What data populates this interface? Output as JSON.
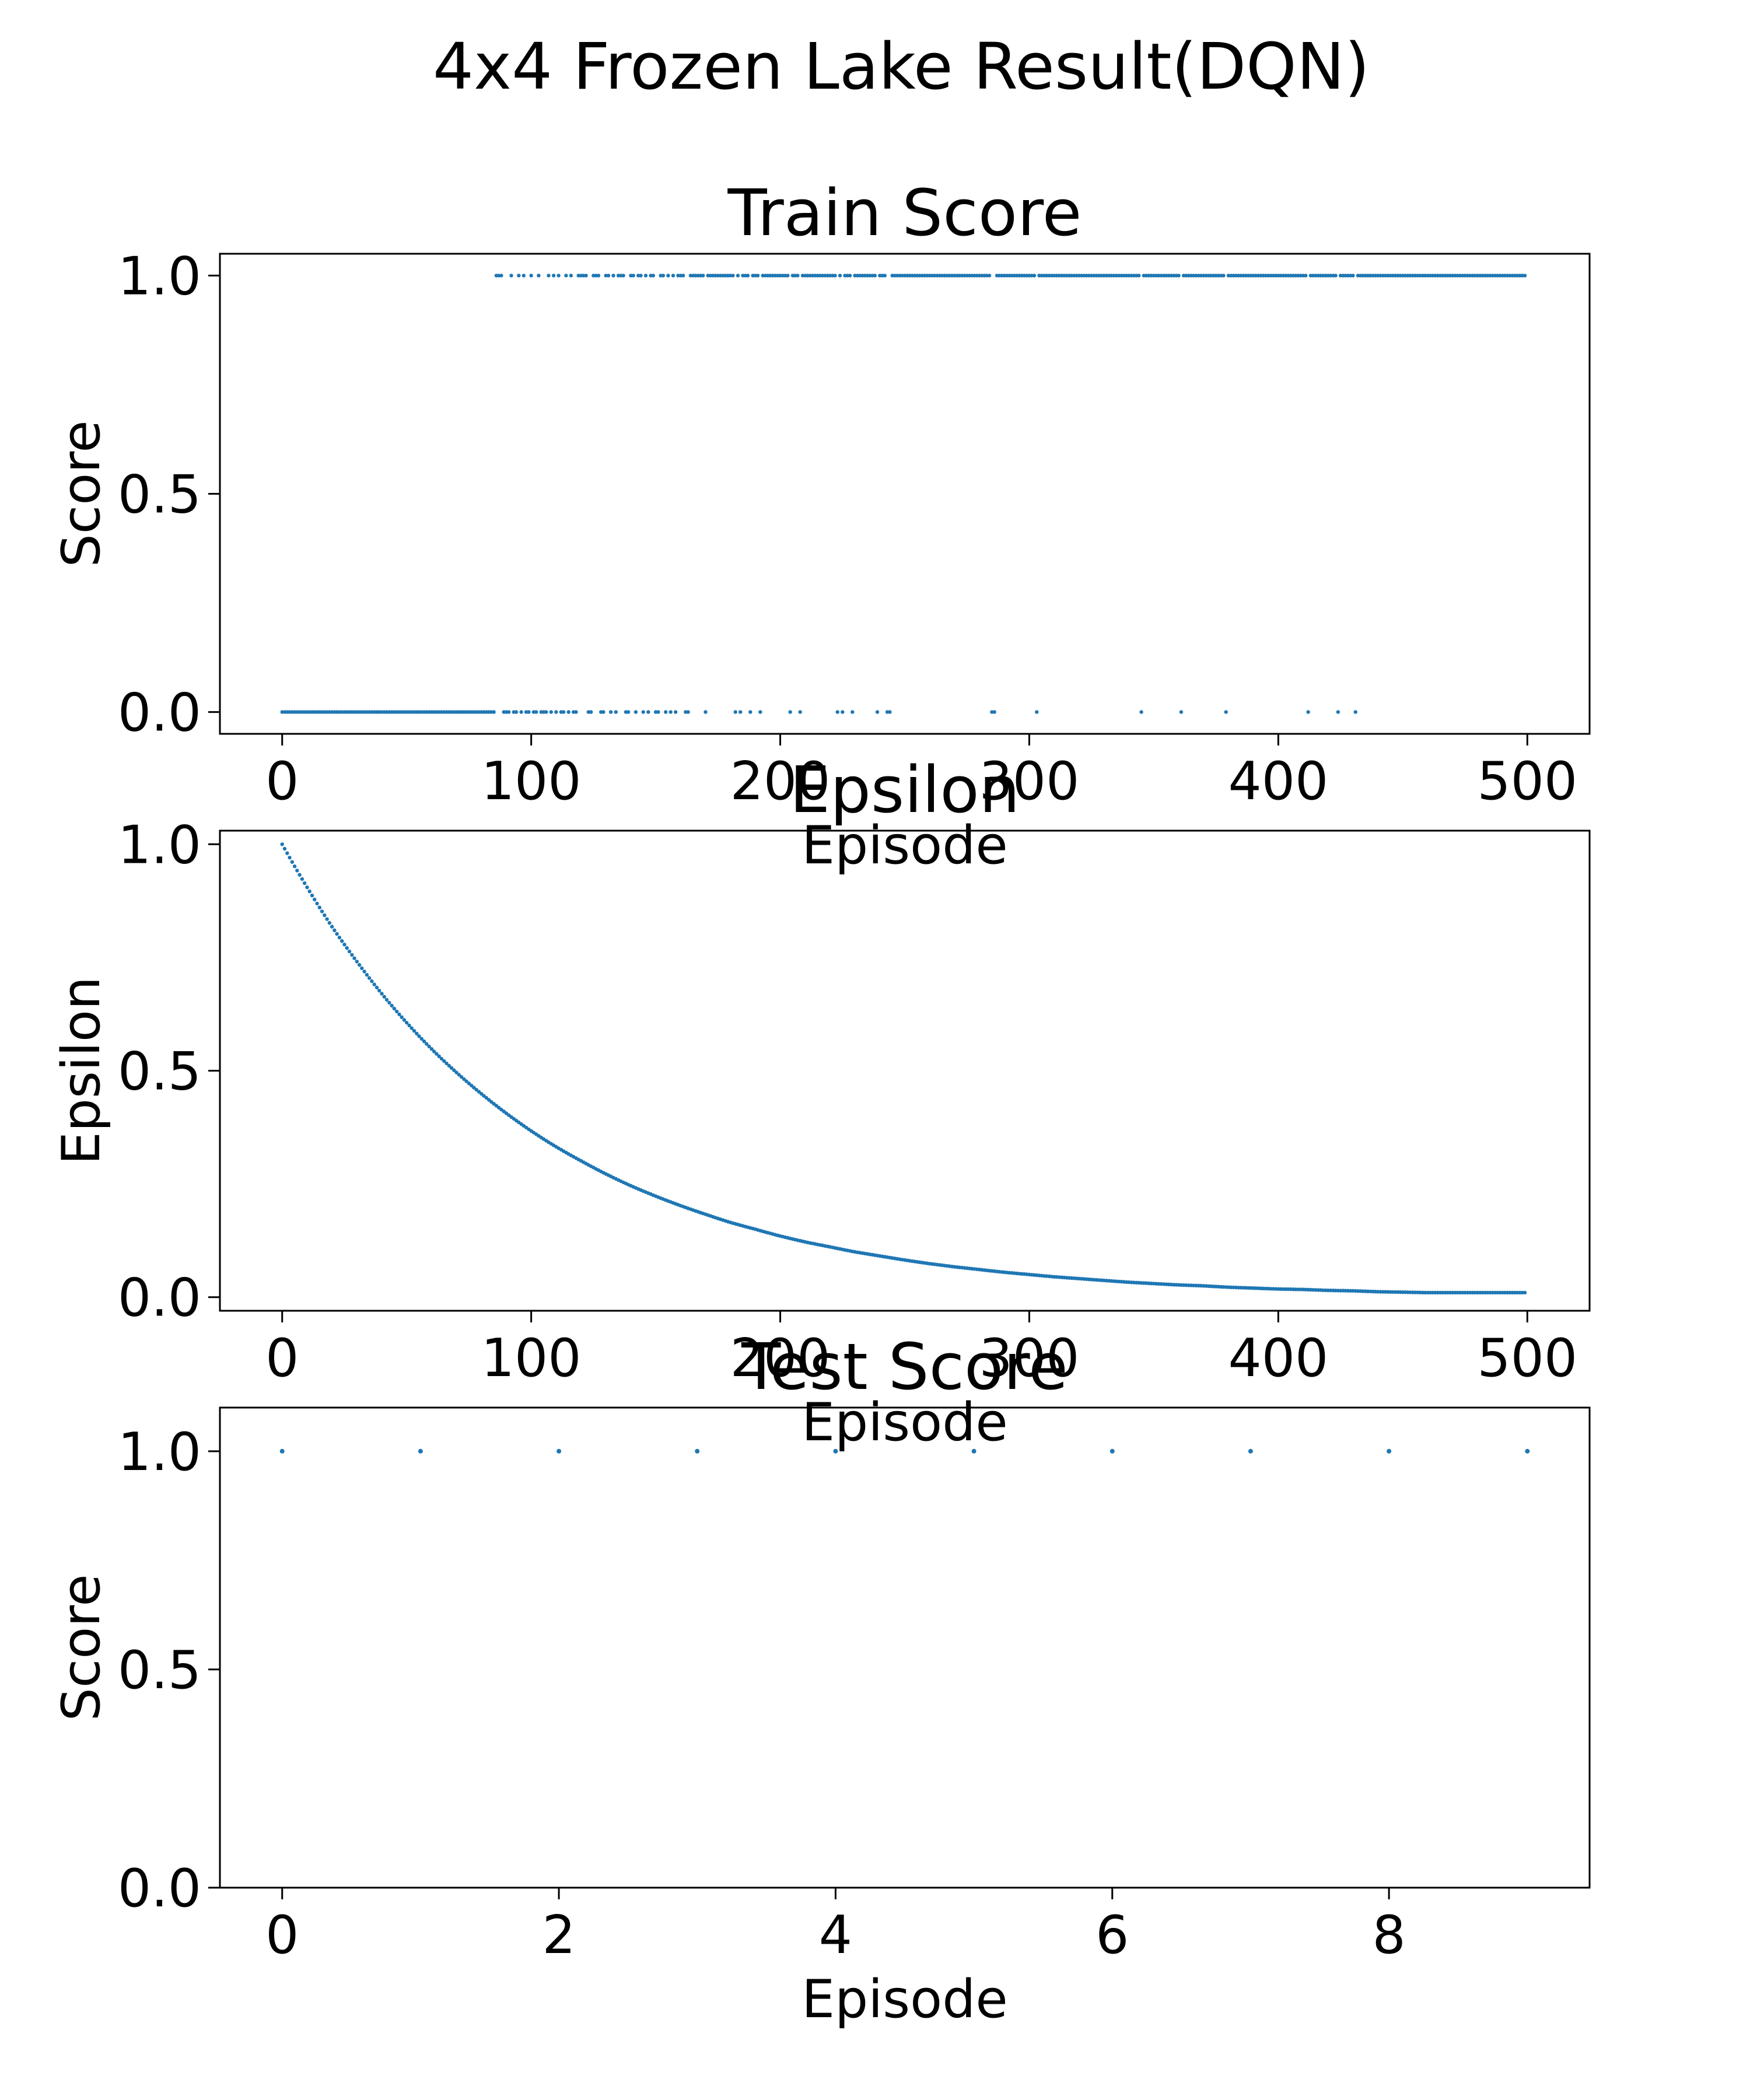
{
  "figure": {
    "title": "4x4 Frozen Lake Result(DQN)"
  },
  "style": {
    "series_color": "#1f77b4",
    "axis_color": "#000000",
    "background": "#ffffff"
  },
  "chart_data": [
    {
      "type": "scatter",
      "title": "Train Score",
      "xlabel": "Episode",
      "ylabel": "Score",
      "xlim": [
        -25,
        525
      ],
      "ylim": [
        -0.05,
        1.05
      ],
      "xticks": [
        0,
        100,
        200,
        300,
        400,
        500
      ],
      "yticks": [
        0.0,
        0.5,
        1.0
      ],
      "grid": false,
      "series": [
        {
          "score_zero_episodes": [
            0,
            1,
            2,
            3,
            4,
            5,
            6,
            7,
            8,
            9,
            10,
            11,
            12,
            13,
            14,
            15,
            16,
            17,
            18,
            19,
            20,
            21,
            22,
            23,
            24,
            25,
            26,
            27,
            28,
            29,
            30,
            31,
            32,
            33,
            34,
            35,
            36,
            37,
            38,
            39,
            40,
            41,
            42,
            43,
            44,
            45,
            46,
            47,
            48,
            49,
            50,
            51,
            52,
            53,
            54,
            55,
            56,
            57,
            58,
            59,
            60,
            61,
            62,
            63,
            64,
            65,
            66,
            67,
            68,
            69,
            70,
            71,
            72,
            73,
            74,
            75,
            76,
            77,
            78,
            79,
            80,
            81,
            82,
            83,
            84,
            85,
            89,
            90,
            91,
            93,
            94,
            96,
            98,
            99,
            101,
            102,
            104,
            105,
            106,
            108,
            110,
            112,
            113,
            115,
            117,
            118,
            123,
            124,
            128,
            129,
            132,
            134,
            138,
            139,
            142,
            145,
            147,
            150,
            151,
            154,
            156,
            158,
            162,
            163,
            170,
            182,
            184,
            188,
            192,
            204,
            208,
            223,
            225,
            229,
            239,
            243,
            244,
            285,
            286,
            303,
            345,
            361,
            379,
            412,
            424,
            431
          ],
          "score_one_episodes": [
            86,
            87,
            88,
            92,
            95,
            97,
            100,
            103,
            107,
            109,
            111,
            114,
            116,
            119,
            120,
            121,
            122,
            125,
            126,
            127,
            130,
            131,
            133,
            135,
            136,
            137,
            140,
            141,
            143,
            144,
            146,
            148,
            149,
            152,
            153,
            155,
            157,
            159,
            160,
            161,
            164,
            165,
            166,
            167,
            168,
            169,
            171,
            172,
            173,
            174,
            175,
            176,
            177,
            178,
            179,
            180,
            181,
            183,
            185,
            186,
            187,
            189,
            190,
            191,
            193,
            194,
            195,
            196,
            197,
            198,
            199,
            200,
            201,
            202,
            203,
            205,
            206,
            207,
            209,
            210,
            211,
            212,
            213,
            214,
            215,
            216,
            217,
            218,
            219,
            220,
            221,
            222,
            224,
            226,
            227,
            228,
            230,
            231,
            232,
            233,
            234,
            235,
            236,
            237,
            238,
            240,
            241,
            242,
            245,
            246,
            247,
            248,
            249,
            250,
            251,
            252,
            253,
            254,
            255,
            256,
            257,
            258,
            259,
            260,
            261,
            262,
            263,
            264,
            265,
            266,
            267,
            268,
            269,
            270,
            271,
            272,
            273,
            274,
            275,
            276,
            277,
            278,
            279,
            280,
            281,
            282,
            283,
            284,
            287,
            288,
            289,
            290,
            291,
            292,
            293,
            294,
            295,
            296,
            297,
            298,
            299,
            300,
            301,
            302,
            304,
            305,
            306,
            307,
            308,
            309,
            310,
            311,
            312,
            313,
            314,
            315,
            316,
            317,
            318,
            319,
            320,
            321,
            322,
            323,
            324,
            325,
            326,
            327,
            328,
            329,
            330,
            331,
            332,
            333,
            334,
            335,
            336,
            337,
            338,
            339,
            340,
            341,
            342,
            343,
            344,
            346,
            347,
            348,
            349,
            350,
            351,
            352,
            353,
            354,
            355,
            356,
            357,
            358,
            359,
            360,
            362,
            363,
            364,
            365,
            366,
            367,
            368,
            369,
            370,
            371,
            372,
            373,
            374,
            375,
            376,
            377,
            378,
            380,
            381,
            382,
            383,
            384,
            385,
            386,
            387,
            388,
            389,
            390,
            391,
            392,
            393,
            394,
            395,
            396,
            397,
            398,
            399,
            400,
            401,
            402,
            403,
            404,
            405,
            406,
            407,
            408,
            409,
            410,
            411,
            413,
            414,
            415,
            416,
            417,
            418,
            419,
            420,
            421,
            422,
            423,
            425,
            426,
            427,
            428,
            429,
            430,
            432,
            433,
            434,
            435,
            436,
            437,
            438,
            439,
            440,
            441,
            442,
            443,
            444,
            445,
            446,
            447,
            448,
            449,
            450,
            451,
            452,
            453,
            454,
            455,
            456,
            457,
            458,
            459,
            460,
            461,
            462,
            463,
            464,
            465,
            466,
            467,
            468,
            469,
            470,
            471,
            472,
            473,
            474,
            475,
            476,
            477,
            478,
            479,
            480,
            481,
            482,
            483,
            484,
            485,
            486,
            487,
            488,
            489,
            490,
            491,
            492,
            493,
            494,
            495,
            496,
            497,
            498,
            499
          ]
        }
      ]
    },
    {
      "type": "scatter",
      "title": "Epsilon",
      "xlabel": "Episode",
      "ylabel": "Epsilon",
      "xlim": [
        -25,
        525
      ],
      "ylim": [
        -0.03,
        1.03
      ],
      "xticks": [
        0,
        100,
        200,
        300,
        400,
        500
      ],
      "yticks": [
        0.0,
        0.5,
        1.0
      ],
      "grid": false,
      "series": [
        {
          "x": [
            0,
            10,
            20,
            30,
            40,
            50,
            60,
            70,
            80,
            90,
            100,
            110,
            120,
            130,
            140,
            150,
            160,
            170,
            180,
            190,
            200,
            210,
            220,
            230,
            240,
            250,
            260,
            270,
            280,
            290,
            300,
            310,
            320,
            330,
            340,
            350,
            360,
            370,
            380,
            390,
            400,
            410,
            420,
            430,
            440,
            450,
            460,
            470,
            480,
            490,
            499
          ],
          "y": [
            1.0,
            0.905,
            0.818,
            0.741,
            0.67,
            0.606,
            0.548,
            0.496,
            0.449,
            0.406,
            0.367,
            0.332,
            0.301,
            0.272,
            0.246,
            0.223,
            0.202,
            0.183,
            0.165,
            0.15,
            0.135,
            0.122,
            0.111,
            0.1,
            0.091,
            0.082,
            0.074,
            0.067,
            0.061,
            0.055,
            0.05,
            0.045,
            0.041,
            0.037,
            0.033,
            0.03,
            0.027,
            0.025,
            0.022,
            0.02,
            0.018,
            0.017,
            0.015,
            0.014,
            0.012,
            0.011,
            0.01,
            0.01,
            0.01,
            0.01,
            0.01
          ]
        }
      ]
    },
    {
      "type": "scatter",
      "title": "Test Score",
      "xlabel": "Episode",
      "ylabel": "Score",
      "xlim": [
        -0.45,
        9.45
      ],
      "ylim": [
        0.0,
        1.1
      ],
      "xticks": [
        0,
        2,
        4,
        6,
        8
      ],
      "yticks": [
        0.0,
        0.5,
        1.0
      ],
      "grid": false,
      "series": [
        {
          "x": [
            0,
            1,
            2,
            3,
            4,
            5,
            6,
            7,
            8,
            9
          ],
          "y": [
            1,
            1,
            1,
            1,
            1,
            1,
            1,
            1,
            1,
            1
          ]
        }
      ]
    }
  ]
}
